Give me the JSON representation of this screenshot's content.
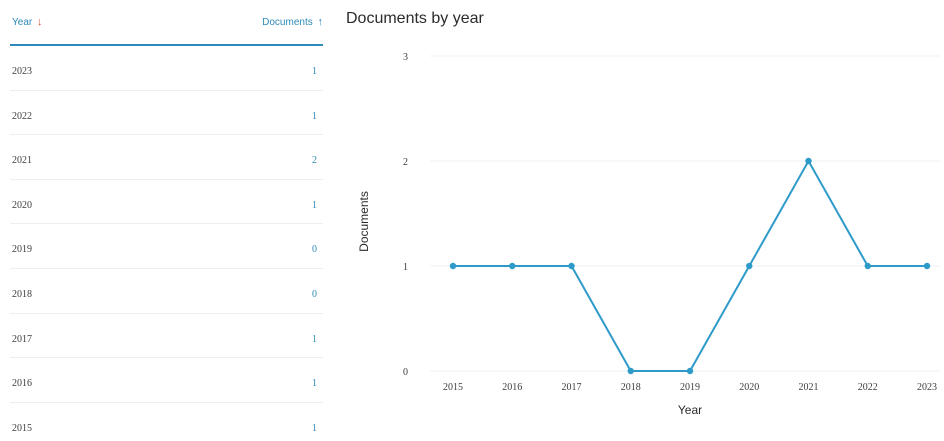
{
  "table": {
    "year_header": "Year",
    "year_sort_arrow": "↓",
    "documents_header": "Documents",
    "documents_sort_arrow": "↑",
    "rows": [
      {
        "year": "2023",
        "documents": "1"
      },
      {
        "year": "2022",
        "documents": "1"
      },
      {
        "year": "2021",
        "documents": "2"
      },
      {
        "year": "2020",
        "documents": "1"
      },
      {
        "year": "2019",
        "documents": "0"
      },
      {
        "year": "2018",
        "documents": "0"
      },
      {
        "year": "2017",
        "documents": "1"
      },
      {
        "year": "2016",
        "documents": "1"
      },
      {
        "year": "2015",
        "documents": "1"
      }
    ]
  },
  "chart_data": {
    "type": "line",
    "title": "Documents by year",
    "xlabel": "Year",
    "ylabel": "Documents",
    "x": [
      "2015",
      "2016",
      "2017",
      "2018",
      "2019",
      "2020",
      "2021",
      "2022",
      "2023"
    ],
    "values": [
      1,
      1,
      1,
      0,
      0,
      1,
      2,
      1,
      1
    ],
    "y_ticks": [
      "0",
      "1",
      "2",
      "3"
    ],
    "ylim": [
      0,
      3
    ],
    "grid": true,
    "legend": "none",
    "line_color": "#2e9ac9",
    "grid_color": "#eef1f3"
  }
}
